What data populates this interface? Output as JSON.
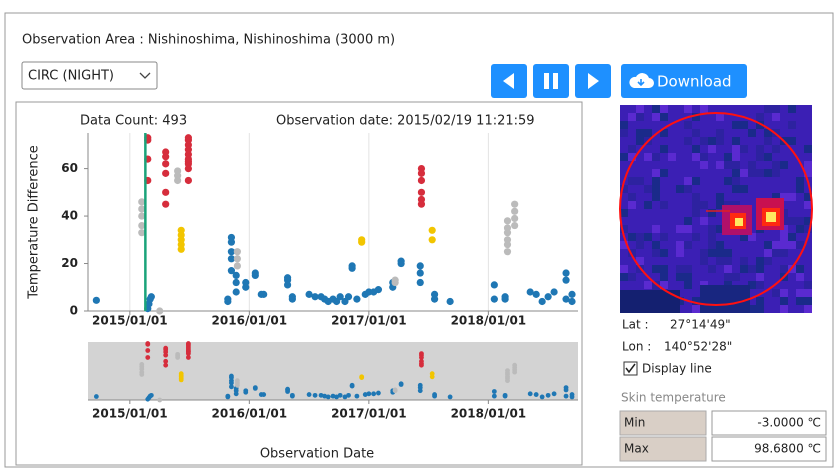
{
  "header": {
    "title": "Observation Area : Nishinoshima, Nishinoshima (3000 m)"
  },
  "controls": {
    "select": "CIRC (NIGHT)",
    "download": "Download"
  },
  "chart_data": {
    "type": "scatter",
    "data_count": "Data Count: 493",
    "observation_date": "Observation date: 2015/02/19 11:21:59",
    "x_label": "Observation Date",
    "y_label": "Temperature Difference",
    "xlim": [
      2014.65,
      2018.75
    ],
    "ylim": [
      0,
      75
    ],
    "xticks": [
      {
        "value": 2015,
        "label": "2015/01/01"
      },
      {
        "value": 2016,
        "label": "2016/01/01"
      },
      {
        "value": 2017,
        "label": "2017/01/01"
      },
      {
        "value": 2018,
        "label": "2018/01/01"
      }
    ],
    "yticks": [
      0,
      20,
      40,
      60
    ],
    "grid": true,
    "current_x": 2015.13,
    "current_color": "#1aa37a",
    "series": [
      {
        "color": "#1f77b4",
        "x": [
          2014.72,
          2015.15,
          2015.16,
          2015.17,
          2015.18,
          2015.82,
          2015.82,
          2015.85,
          2015.85,
          2015.85,
          2015.85,
          2015.85,
          2015.89,
          2015.89,
          2015.89,
          2015.97,
          2015.97,
          2016.05,
          2016.05,
          2016.1,
          2016.12,
          2016.32,
          2016.32,
          2016.32,
          2016.36,
          2016.36,
          2016.5,
          2016.55,
          2016.6,
          2016.63,
          2016.66,
          2016.7,
          2016.73,
          2016.76,
          2016.8,
          2016.83,
          2016.86,
          2016.86,
          2016.9,
          2016.97,
          2017.0,
          2017.04,
          2017.08,
          2017.2,
          2017.2,
          2017.27,
          2017.27,
          2017.43,
          2017.43,
          2017.43,
          2017.55,
          2017.55,
          2017.68,
          2018.05,
          2018.05,
          2018.14,
          2018.14,
          2018.35,
          2018.4,
          2018.45,
          2018.5,
          2018.55,
          2018.65,
          2018.65,
          2018.65,
          2018.7,
          2018.7
        ],
        "values": [
          4.5,
          1,
          3,
          5,
          6,
          5,
          4,
          31,
          29,
          25,
          22,
          17,
          15,
          12,
          8,
          10,
          12,
          15,
          16,
          7,
          7,
          14,
          13,
          11,
          6,
          5,
          7,
          6,
          6,
          5,
          4,
          5,
          4,
          6,
          4,
          6,
          19,
          18,
          5,
          7,
          8,
          8,
          9,
          10,
          12,
          21,
          20,
          19,
          16,
          12,
          7,
          5,
          4,
          11,
          5,
          5,
          6,
          8,
          7,
          4,
          6,
          8,
          16,
          13,
          5,
          7,
          4
        ]
      },
      {
        "color": "#d62d3c",
        "x": [
          2015.15,
          2015.15,
          2015.15,
          2015.15,
          2015.3,
          2015.3,
          2015.3,
          2015.3,
          2015.3,
          2015.3,
          2015.49,
          2015.49,
          2015.49,
          2015.49,
          2015.49,
          2015.49,
          2015.49,
          2015.49,
          2015.49,
          2015.49,
          2017.44,
          2017.44,
          2017.44,
          2017.44,
          2017.44,
          2017.44
        ],
        "values": [
          73,
          72,
          64,
          55,
          45,
          50,
          58,
          62,
          65,
          67,
          60,
          62,
          63,
          64,
          66,
          68,
          70,
          72,
          73,
          55,
          60,
          58,
          55,
          50,
          47,
          45
        ]
      },
      {
        "color": "#bbbbbb",
        "x": [
          2015.1,
          2015.1,
          2015.1,
          2015.1,
          2015.1,
          2015.25,
          2015.4,
          2015.4,
          2015.4,
          2015.9,
          2015.9,
          2015.9,
          2017.22,
          2017.22,
          2018.16,
          2018.16,
          2018.16,
          2018.16,
          2018.16,
          2018.16,
          2018.22,
          2018.22,
          2018.22,
          2018.22
        ],
        "values": [
          46,
          43,
          40,
          36,
          33,
          0,
          55,
          57,
          59,
          25,
          22,
          19,
          12,
          13,
          38,
          35,
          33,
          30,
          28,
          25,
          45,
          42,
          39,
          36
        ]
      },
      {
        "color": "#f2c500",
        "x": [
          2015.43,
          2015.43,
          2015.43,
          2015.43,
          2015.43,
          2016.94,
          2016.94,
          2017.53,
          2017.53
        ],
        "values": [
          34,
          32,
          30,
          28,
          26,
          30,
          29,
          34,
          30
        ]
      }
    ]
  },
  "side": {
    "lat_label": "Lat :",
    "lat": "27°14'49\"",
    "lon_label": "Lon :",
    "lon": "140°52'28\"",
    "display_line": "Display line",
    "skin_title": "Skin temperature",
    "rows": [
      [
        "Min",
        "-3.0000 ℃"
      ],
      [
        "Max",
        "98.6800 ℃"
      ]
    ]
  }
}
